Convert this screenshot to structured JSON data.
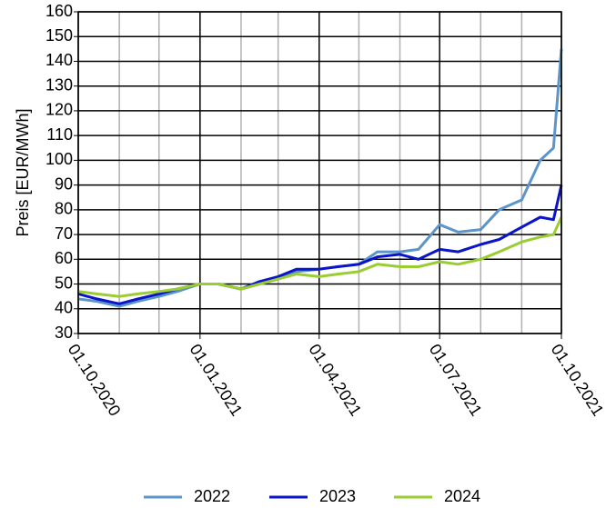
{
  "chart_data": {
    "type": "line",
    "y_label": "Preis [EUR/MWh]",
    "x": [
      "01.10.2020",
      "15.10.2020",
      "01.11.2020",
      "15.11.2020",
      "01.12.2020",
      "15.12.2020",
      "01.01.2021",
      "15.01.2021",
      "01.02.2021",
      "15.02.2021",
      "01.03.2021",
      "15.03.2021",
      "01.04.2021",
      "15.04.2021",
      "01.05.2021",
      "15.05.2021",
      "01.06.2021",
      "15.06.2021",
      "01.07.2021",
      "15.07.2021",
      "01.08.2021",
      "15.08.2021",
      "01.09.2021",
      "15.09.2021",
      "25.09.2021",
      "01.10.2021"
    ],
    "series": [
      {
        "name": "2022",
        "color": "#5b95c9",
        "values": [
          44,
          43,
          41,
          43,
          45,
          47,
          50,
          50,
          48,
          50,
          52,
          55,
          56,
          57,
          58,
          63,
          63,
          64,
          74,
          71,
          72,
          80,
          84,
          100,
          105,
          145
        ]
      },
      {
        "name": "2023",
        "color": "#0a14c8",
        "values": [
          46,
          44,
          42,
          44,
          46,
          48,
          50,
          50,
          48,
          51,
          53,
          56,
          56,
          57,
          58,
          61,
          62,
          60,
          64,
          63,
          66,
          68,
          73,
          77,
          76,
          90
        ]
      },
      {
        "name": "2024",
        "color": "#9acd32",
        "values": [
          47,
          46,
          45,
          46,
          47,
          48,
          50,
          50,
          48,
          50,
          52,
          54,
          53,
          54,
          55,
          58,
          57,
          57,
          59,
          58,
          60,
          63,
          67,
          69,
          70,
          77
        ]
      }
    ],
    "xlim": [
      "01.10.2020",
      "01.10.2021"
    ],
    "xticks": [
      "01.10.2020",
      "01.01.2021",
      "01.04.2021",
      "01.07.2021",
      "01.10.2021"
    ],
    "xminorticks": [
      "01.11.2020",
      "01.12.2020",
      "01.02.2021",
      "01.03.2021",
      "01.05.2021",
      "01.06.2021",
      "01.08.2021",
      "01.09.2021"
    ],
    "ylim": [
      30,
      160
    ],
    "yticks": [
      30,
      40,
      50,
      60,
      70,
      80,
      90,
      100,
      110,
      120,
      130,
      140,
      150,
      160
    ],
    "grid": true,
    "legend": "bottom"
  }
}
